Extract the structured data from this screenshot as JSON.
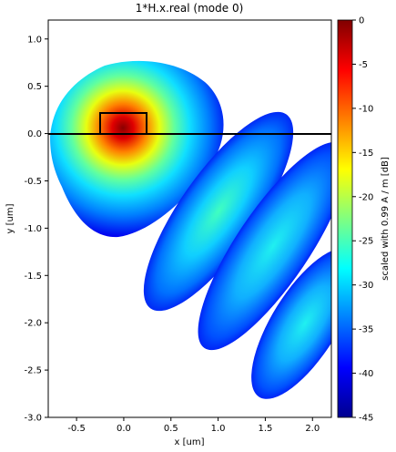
{
  "chart_data": {
    "type": "field",
    "title": "1*H.x.real (mode 0)",
    "xlabel": "x [um]",
    "ylabel": "y [um]",
    "xlim": [
      -0.8,
      2.2
    ],
    "xticks": [
      -0.5,
      0.0,
      0.5,
      1.0,
      1.5,
      2.0
    ],
    "ylim": [
      -3.0,
      1.2
    ],
    "yticks": [
      1.0,
      0.5,
      0.0,
      -0.5,
      -1.0,
      -1.5,
      -2.0,
      -2.5,
      -3.0
    ],
    "colorbar_label": "scaled with 0.99 A / m [dB]",
    "colorbar_lim": [
      -45,
      0
    ],
    "colorbar_ticks": [
      0,
      -5,
      -10,
      -15,
      -20,
      -25,
      -30,
      -35,
      -40,
      -45
    ],
    "colormap": "jet"
  }
}
